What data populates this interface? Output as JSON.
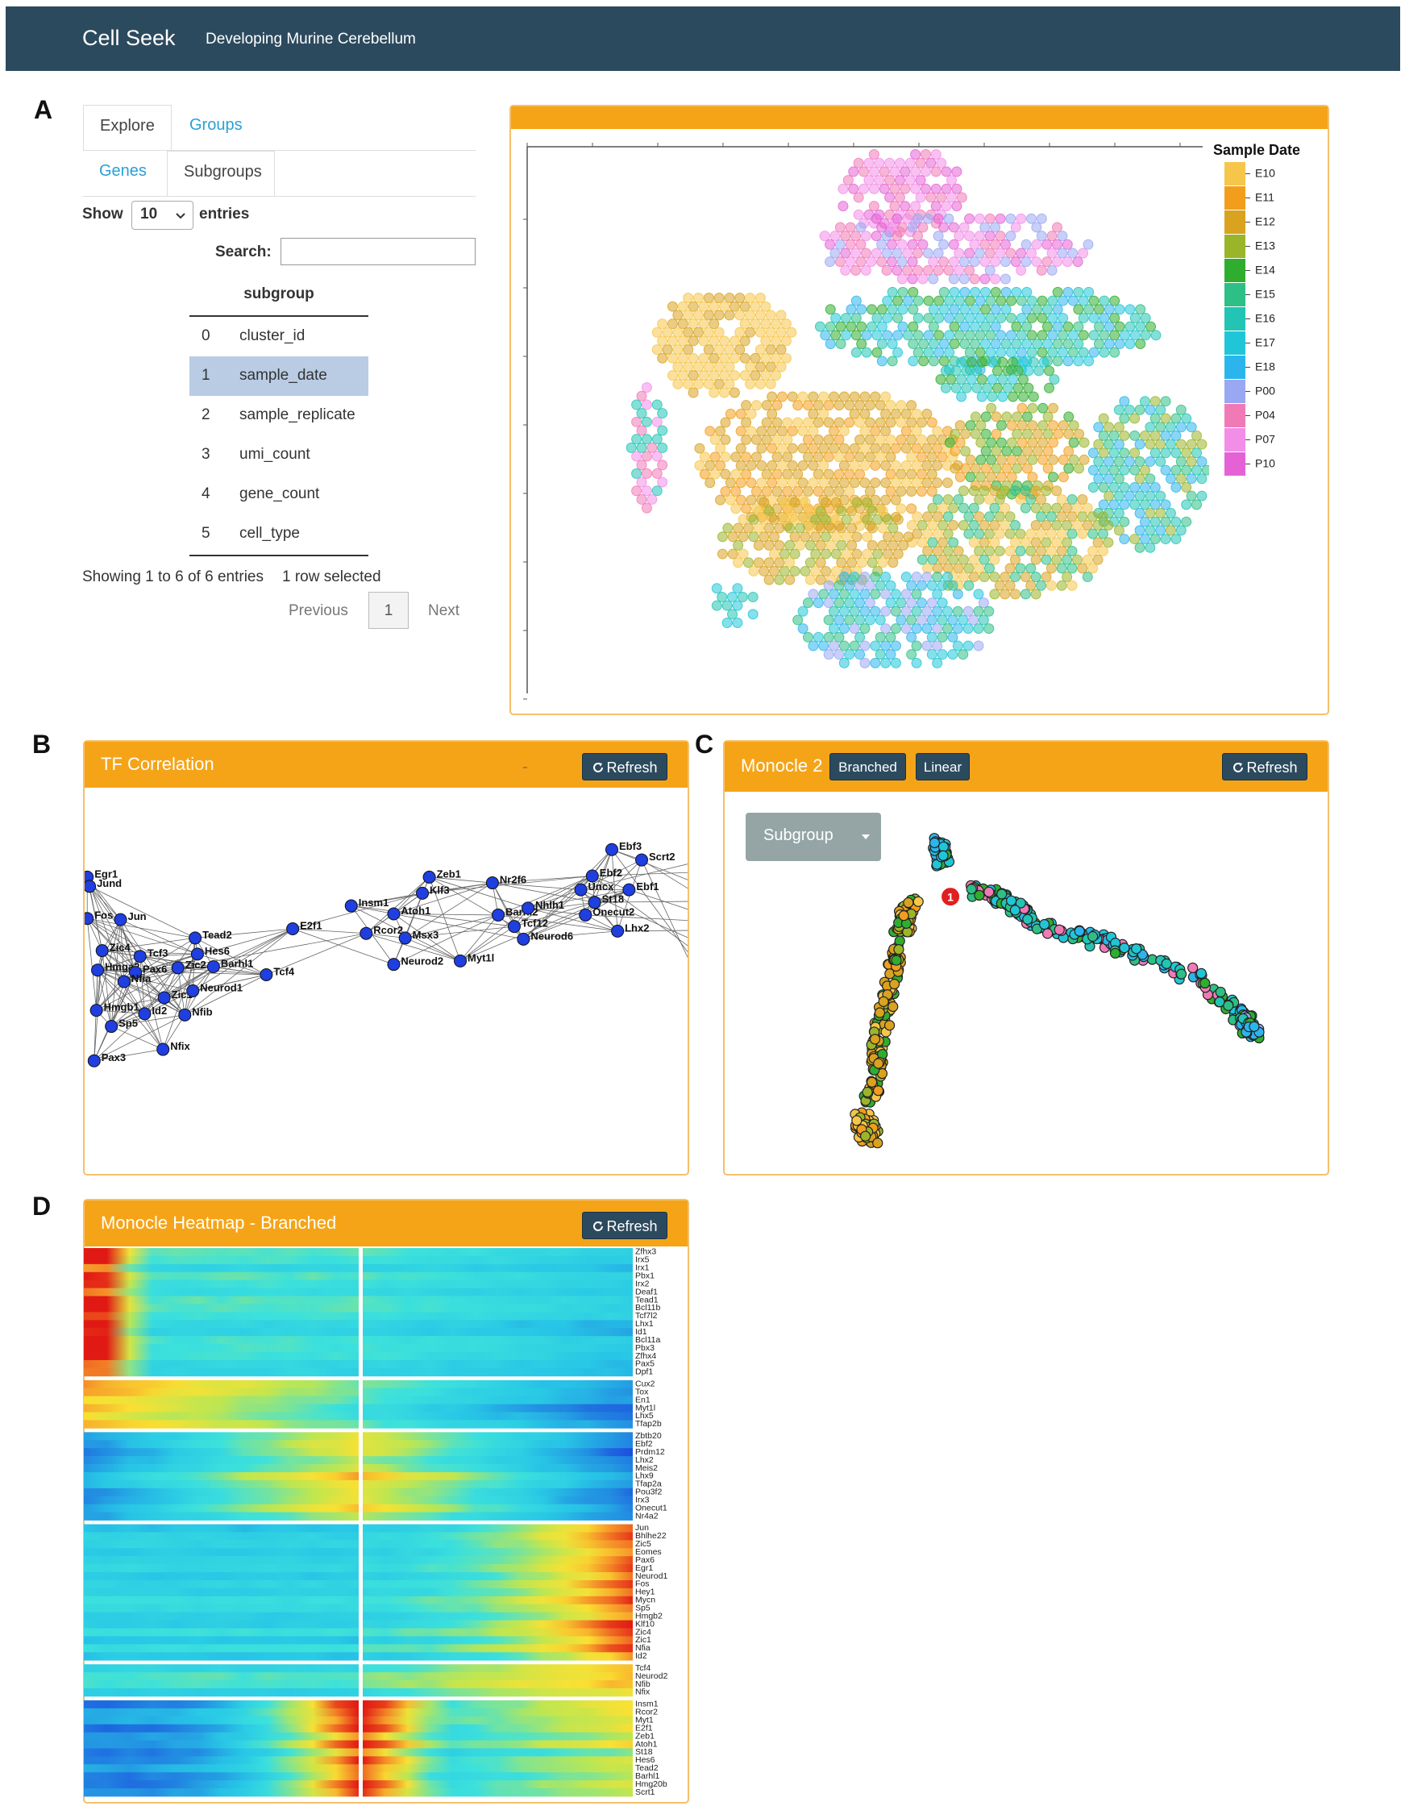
{
  "header": {
    "brand": "Cell Seek",
    "subtitle": "Developing Murine Cerebellum"
  },
  "panel_a": {
    "label": "A",
    "tabs": [
      "Explore",
      "Groups"
    ],
    "subtabs": [
      "Genes",
      "Subgroups"
    ],
    "show_label": "Show",
    "page_length": "10",
    "entries_label": "entries",
    "search_label": "Search:",
    "table": {
      "header": "subgroup",
      "rows": [
        [
          "0",
          "cluster_id"
        ],
        [
          "1",
          "sample_date"
        ],
        [
          "2",
          "sample_replicate"
        ],
        [
          "3",
          "umi_count"
        ],
        [
          "4",
          "gene_count"
        ],
        [
          "5",
          "cell_type"
        ]
      ],
      "selected_row": 1
    },
    "info": "Showing 1 to 6 of 6 entries",
    "selected_info": "1 row selected",
    "pagination": [
      "Previous",
      "1",
      "Next"
    ],
    "plot": {
      "legend_title": "Sample Date",
      "legend": [
        {
          "label": "E10",
          "color": "#f6c64a"
        },
        {
          "label": "E11",
          "color": "#f29e1c"
        },
        {
          "label": "E12",
          "color": "#d9a21f"
        },
        {
          "label": "E13",
          "color": "#9bb52a"
        },
        {
          "label": "E14",
          "color": "#2fad2f"
        },
        {
          "label": "E15",
          "color": "#2dbf86"
        },
        {
          "label": "E16",
          "color": "#22c4b4"
        },
        {
          "label": "E17",
          "color": "#20c6d8"
        },
        {
          "label": "E18",
          "color": "#2bb5ec"
        },
        {
          "label": "P00",
          "color": "#9aa7f2"
        },
        {
          "label": "P04",
          "color": "#f07ab6"
        },
        {
          "label": "P07",
          "color": "#f28ee8"
        },
        {
          "label": "P10",
          "color": "#e562d6"
        }
      ]
    }
  },
  "panel_b": {
    "label": "B",
    "title": "TF Correlation",
    "button": "Refresh",
    "nodes": [
      "Egr1",
      "Jund",
      "Fos",
      "Jun",
      "Zic4",
      "Tcf3",
      "Hes6",
      "Tead2",
      "Hmga2",
      "Pax6",
      "Zic2",
      "Barhl1",
      "Nfia",
      "Zic1",
      "Neurod1",
      "Tcf4",
      "Id2",
      "Nfib",
      "Hmgb1",
      "Sp5",
      "Nfix",
      "Pax3",
      "E2f1",
      "Insm1",
      "Atoh1",
      "Rcor2",
      "Msx3",
      "Neurod2",
      "Myt1l",
      "Zeb1",
      "Klf3",
      "Nr2f6",
      "Barhl2",
      "Nhlh1",
      "Tcf12",
      "Neurod6",
      "Uncx",
      "Ebf2",
      "Ebf3",
      "Scrt2",
      "St18",
      "Ebf1",
      "Onecut2",
      "Lhx2"
    ]
  },
  "panel_c": {
    "label": "C",
    "title": "Monocle 2",
    "buttons": [
      "Branched",
      "Linear"
    ],
    "button": "Refresh",
    "dropdown": "Subgroup",
    "marker": "1"
  },
  "panel_d": {
    "label": "D",
    "title": "Monocle Heatmap - Branched",
    "button": "Refresh",
    "gene_blocks": [
      [
        "Zfhx3",
        "Irx5",
        "Irx1",
        "Pbx1",
        "Irx2",
        "Deaf1",
        "Tead1",
        "Bcl11b",
        "Tcf7l2",
        "Lhx1",
        "Id1",
        "Bcl11a",
        "Pbx3",
        "Zfhx4",
        "Pax5",
        "Dpf1"
      ],
      [
        "Cux2",
        "Tox",
        "En1",
        "Myt1l",
        "Lhx5",
        "Tfap2b"
      ],
      [
        "Zbtb20",
        "Ebf2",
        "Prdm12",
        "Lhx2",
        "Meis2",
        "Lhx9",
        "Tfap2a",
        "Pou3f2",
        "Irx3",
        "Onecut1",
        "Nr4a2"
      ],
      [
        "Jun",
        "Bhlhe22",
        "Zic5",
        "Eomes",
        "Pax6",
        "Egr1",
        "Neurod1",
        "Fos",
        "Hey1",
        "Mycn",
        "Sp5",
        "Hmgb2",
        "Klf10",
        "Zic4",
        "Zic1",
        "Nfia",
        "Id2"
      ],
      [
        "Tcf4",
        "Neurod2",
        "Nfib",
        "Nfix"
      ],
      [
        "Insm1",
        "Rcor2",
        "Myt1",
        "E2f1",
        "Zeb1",
        "Atoh1",
        "St18",
        "Hes6",
        "Tead2",
        "Barhl1",
        "Hmg20b",
        "Scrt1"
      ]
    ]
  }
}
